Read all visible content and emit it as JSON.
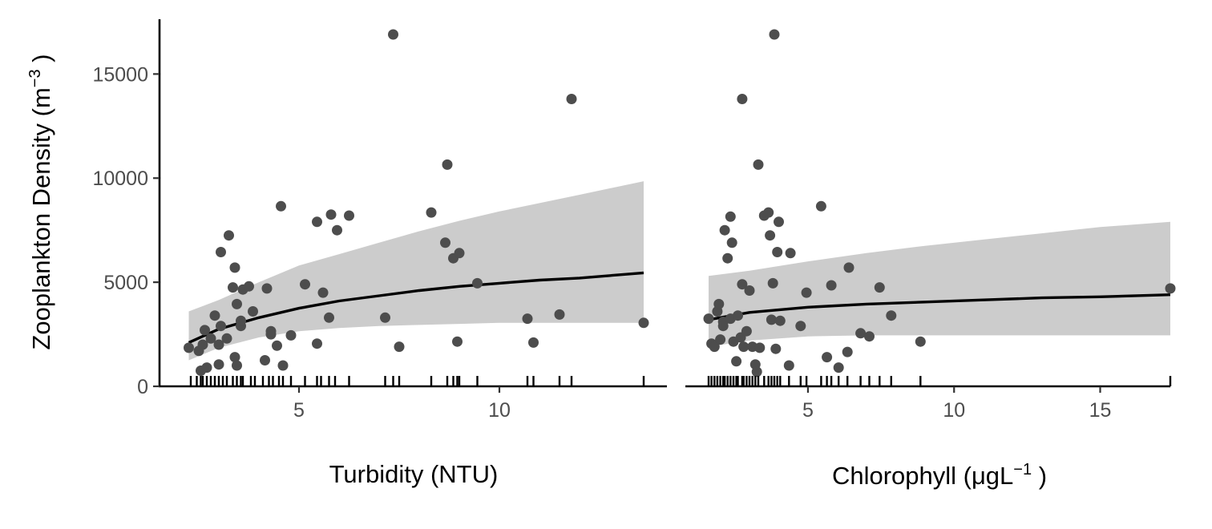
{
  "chart_data": [
    {
      "type": "scatter",
      "panel": "left",
      "ylabel_main": "Zooplankton Density (m",
      "ylabel_sup": "−3",
      "ylabel_tail": " )",
      "xlabel_main": "Turbidity (NTU)",
      "xlabel_sup": "",
      "xlabel_tail": "",
      "xlim": [
        2.1,
        13.6
      ],
      "ylim": [
        0,
        17700
      ],
      "xticks": [
        5,
        10
      ],
      "yticks": [
        0,
        5000,
        10000,
        15000
      ],
      "grid": false,
      "legend": "none",
      "point_color": "#4d4d4d",
      "band_color": "#cccccc",
      "line_color": "#000000",
      "points": [
        [
          2.25,
          1850
        ],
        [
          2.5,
          1700
        ],
        [
          2.55,
          750
        ],
        [
          2.65,
          2700
        ],
        [
          2.7,
          900
        ],
        [
          2.6,
          2000
        ],
        [
          2.8,
          2300
        ],
        [
          2.9,
          3400
        ],
        [
          3.0,
          1050
        ],
        [
          3.0,
          2000
        ],
        [
          3.05,
          2900
        ],
        [
          3.05,
          6450
        ],
        [
          3.2,
          2300
        ],
        [
          3.25,
          7250
        ],
        [
          3.35,
          4750
        ],
        [
          3.4,
          5700
        ],
        [
          3.45,
          3950
        ],
        [
          3.4,
          1400
        ],
        [
          3.45,
          1000
        ],
        [
          3.55,
          2900
        ],
        [
          3.55,
          3150
        ],
        [
          3.6,
          4650
        ],
        [
          3.75,
          4800
        ],
        [
          3.85,
          3600
        ],
        [
          4.15,
          1250
        ],
        [
          4.2,
          4700
        ],
        [
          4.3,
          2500
        ],
        [
          4.3,
          2650
        ],
        [
          4.45,
          1950
        ],
        [
          4.55,
          8650
        ],
        [
          4.6,
          1000
        ],
        [
          4.8,
          2450
        ],
        [
          5.15,
          4900
        ],
        [
          5.45,
          2050
        ],
        [
          5.45,
          7900
        ],
        [
          5.6,
          4500
        ],
        [
          5.75,
          3300
        ],
        [
          5.8,
          8250
        ],
        [
          5.95,
          7500
        ],
        [
          6.25,
          8200
        ],
        [
          7.15,
          3300
        ],
        [
          7.35,
          16900
        ],
        [
          7.5,
          1900
        ],
        [
          8.3,
          8350
        ],
        [
          8.65,
          6900
        ],
        [
          8.7,
          10650
        ],
        [
          8.85,
          6150
        ],
        [
          8.95,
          2150
        ],
        [
          9.0,
          6400
        ],
        [
          9.45,
          4950
        ],
        [
          10.7,
          3250
        ],
        [
          10.85,
          2100
        ],
        [
          11.5,
          3450
        ],
        [
          11.8,
          13800
        ],
        [
          13.6,
          3050
        ]
      ],
      "fit": {
        "x": [
          2.25,
          3.0,
          4.0,
          5.0,
          6.0,
          7.0,
          8.0,
          9.0,
          10.0,
          11.0,
          12.0,
          13.6
        ],
        "y": [
          2100,
          2750,
          3300,
          3750,
          4100,
          4350,
          4600,
          4800,
          4950,
          5100,
          5200,
          5450
        ],
        "lower": [
          1250,
          1850,
          2350,
          2650,
          2800,
          2900,
          2950,
          3000,
          3050,
          3050,
          3050,
          3050
        ],
        "upper": [
          3600,
          4150,
          5000,
          5800,
          6350,
          6900,
          7450,
          7950,
          8400,
          8800,
          9200,
          9850
        ]
      },
      "rug": [
        2.3,
        2.45,
        2.55,
        2.6,
        2.7,
        2.8,
        2.9,
        3.0,
        3.1,
        3.2,
        3.35,
        3.45,
        3.55,
        3.6,
        3.8,
        3.9,
        4.1,
        4.25,
        4.35,
        4.5,
        4.6,
        4.8,
        5.15,
        5.45,
        5.55,
        5.75,
        5.9,
        6.25,
        7.15,
        7.35,
        7.5,
        8.3,
        8.7,
        8.85,
        8.95,
        9.0,
        9.45,
        10.7,
        10.85,
        11.5,
        11.8,
        13.6
      ]
    },
    {
      "type": "scatter",
      "panel": "right",
      "xlabel_main": "Chlorophyll (μgL",
      "xlabel_sup": "−1",
      "xlabel_tail": " )",
      "xlim": [
        1.6,
        17.4
      ],
      "ylim": [
        0,
        17700
      ],
      "xticks": [
        5,
        10,
        15
      ],
      "yticks": [
        0,
        5000,
        10000,
        15000
      ],
      "grid": false,
      "legend": "none",
      "point_color": "#4d4d4d",
      "band_color": "#cccccc",
      "line_color": "#000000",
      "points": [
        [
          1.6,
          3250
        ],
        [
          1.7,
          2050
        ],
        [
          1.8,
          1900
        ],
        [
          1.9,
          3600
        ],
        [
          1.95,
          3950
        ],
        [
          2.0,
          2250
        ],
        [
          2.1,
          3100
        ],
        [
          2.1,
          2900
        ],
        [
          2.15,
          7500
        ],
        [
          2.25,
          6150
        ],
        [
          2.35,
          3250
        ],
        [
          2.35,
          8150
        ],
        [
          2.4,
          6900
        ],
        [
          2.45,
          2150
        ],
        [
          2.55,
          1200
        ],
        [
          2.6,
          3400
        ],
        [
          2.7,
          2350
        ],
        [
          2.75,
          4900
        ],
        [
          2.75,
          13800
        ],
        [
          2.8,
          1900
        ],
        [
          2.9,
          2650
        ],
        [
          3.0,
          4600
        ],
        [
          3.1,
          1900
        ],
        [
          3.2,
          1050
        ],
        [
          3.25,
          700
        ],
        [
          3.3,
          10650
        ],
        [
          3.35,
          1850
        ],
        [
          3.5,
          8200
        ],
        [
          3.65,
          8350
        ],
        [
          3.7,
          7250
        ],
        [
          3.75,
          3200
        ],
        [
          3.8,
          4950
        ],
        [
          3.85,
          16900
        ],
        [
          3.9,
          1800
        ],
        [
          3.95,
          6450
        ],
        [
          4.0,
          7900
        ],
        [
          4.05,
          3150
        ],
        [
          4.35,
          1000
        ],
        [
          4.4,
          6400
        ],
        [
          4.75,
          2900
        ],
        [
          4.95,
          4500
        ],
        [
          5.45,
          8650
        ],
        [
          5.65,
          1400
        ],
        [
          5.8,
          4850
        ],
        [
          6.05,
          900
        ],
        [
          6.35,
          1650
        ],
        [
          6.4,
          5700
        ],
        [
          6.8,
          2550
        ],
        [
          7.1,
          2400
        ],
        [
          7.45,
          4750
        ],
        [
          7.85,
          3400
        ],
        [
          8.85,
          2150
        ],
        [
          17.4,
          4700
        ]
      ],
      "fit": {
        "x": [
          1.6,
          3.0,
          5.0,
          7.0,
          9.0,
          11.0,
          13.0,
          15.0,
          17.4
        ],
        "y": [
          3200,
          3550,
          3800,
          3950,
          4050,
          4150,
          4250,
          4300,
          4400
        ],
        "lower": [
          1900,
          2200,
          2400,
          2450,
          2450,
          2450,
          2450,
          2450,
          2450
        ],
        "upper": [
          5300,
          5550,
          6000,
          6400,
          6750,
          7050,
          7350,
          7650,
          7900
        ]
      },
      "rug": [
        1.6,
        1.7,
        1.8,
        1.9,
        2.0,
        2.1,
        2.15,
        2.25,
        2.35,
        2.45,
        2.55,
        2.6,
        2.75,
        2.8,
        2.9,
        3.0,
        3.1,
        3.2,
        3.3,
        3.5,
        3.65,
        3.75,
        3.85,
        3.95,
        4.05,
        4.35,
        4.75,
        4.95,
        5.45,
        5.65,
        5.8,
        6.05,
        6.35,
        6.8,
        7.1,
        7.45,
        7.85,
        8.85,
        17.4
      ]
    }
  ]
}
